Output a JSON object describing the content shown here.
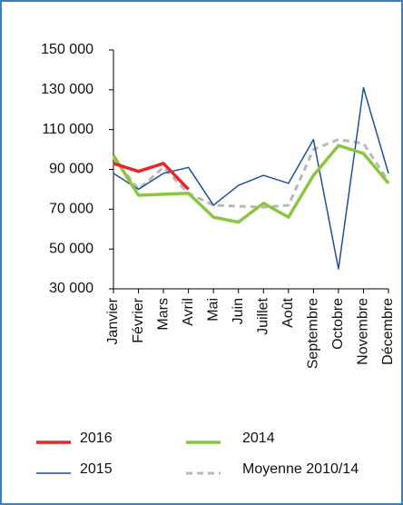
{
  "chart_data": {
    "type": "line",
    "categories": [
      "Janvier",
      "Février",
      "Mars",
      "Avril",
      "Mai",
      "Juin",
      "Juillet",
      "Août",
      "Septembre",
      "Octobre",
      "Novembre",
      "Décembre"
    ],
    "series": [
      {
        "name": "2016",
        "color": "#e8262a",
        "values": [
          93000,
          89000,
          93000,
          80000,
          null,
          null,
          null,
          null,
          null,
          null,
          null,
          null
        ]
      },
      {
        "name": "2015",
        "color": "#1d4fa0",
        "values": [
          88000,
          80000,
          88000,
          91000,
          72000,
          82000,
          87000,
          83000,
          105000,
          40000,
          131000,
          88000
        ]
      },
      {
        "name": "2014",
        "color": "#8cc63f",
        "values": [
          97000,
          77000,
          77500,
          78000,
          66000,
          63500,
          73000,
          66000,
          87000,
          102000,
          98000,
          83000
        ]
      },
      {
        "name": "Moyenne 2010/14",
        "color": "#b8b8b8",
        "values": [
          96000,
          80000,
          91000,
          78000,
          72000,
          71500,
          71000,
          72000,
          100000,
          105000,
          103000,
          84000
        ]
      }
    ],
    "ylim": [
      30000,
      150000
    ],
    "yticks": [
      {
        "value": 30000,
        "label": "30 000"
      },
      {
        "value": 50000,
        "label": "50 000"
      },
      {
        "value": 70000,
        "label": "70 000"
      },
      {
        "value": 90000,
        "label": "90 000"
      },
      {
        "value": 110000,
        "label": "110 000"
      },
      {
        "value": 130000,
        "label": "130 000"
      },
      {
        "value": 150000,
        "label": "150 000"
      }
    ]
  }
}
